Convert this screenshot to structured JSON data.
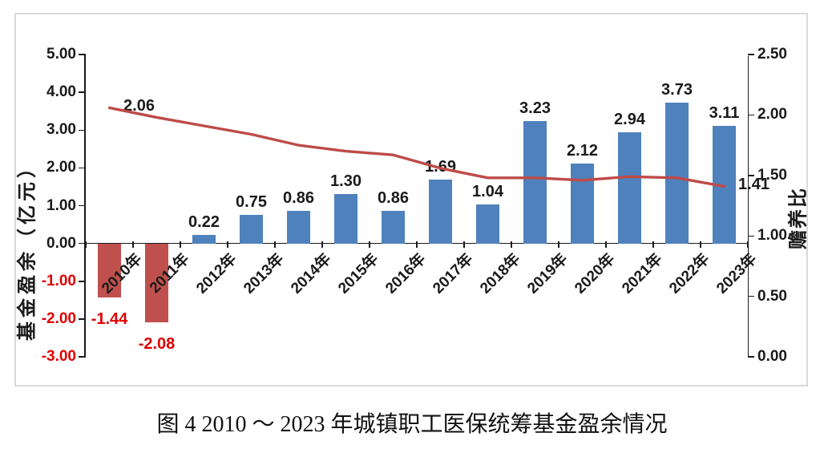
{
  "figure": {
    "caption": "图 4 2010 ～ 2023 年城镇职工医保统筹基金盈余情况"
  },
  "colors": {
    "bar_positive": "#4F81BD",
    "bar_negative": "#C0504D",
    "line": "#BE4B48",
    "negative_label": "#e00000",
    "axis": "#1a1a1a",
    "frame": "#d9d9d9"
  },
  "chart_data": {
    "type": "bar",
    "subtype": "combo-bar-line-dual-axis",
    "categories": [
      "2010年",
      "2011年",
      "2012年",
      "2013年",
      "2014年",
      "2015年",
      "2016年",
      "2017年",
      "2018年",
      "2019年",
      "2020年",
      "2021年",
      "2022年",
      "2023年"
    ],
    "series": [
      {
        "name": "基金盈余",
        "type": "bar",
        "axis": "left",
        "values": [
          -1.44,
          -2.08,
          0.22,
          0.75,
          0.86,
          1.3,
          0.86,
          1.69,
          1.04,
          3.23,
          2.12,
          2.94,
          3.73,
          3.11
        ],
        "labels": [
          "-1.44",
          "-2.08",
          "0.22",
          "0.75",
          "0.86",
          "1.30",
          "0.86",
          "1.69",
          "1.04",
          "3.23",
          "2.12",
          "2.94",
          "3.73",
          "3.11"
        ]
      },
      {
        "name": "赡养比",
        "type": "line",
        "axis": "right",
        "values": [
          2.06,
          1.98,
          1.91,
          1.84,
          1.75,
          1.7,
          1.67,
          1.56,
          1.48,
          1.48,
          1.46,
          1.49,
          1.48,
          1.41
        ],
        "labeled_points": [
          {
            "index": 0,
            "label": "2.06"
          },
          {
            "index": 13,
            "label": "1.41"
          }
        ]
      }
    ],
    "left_axis": {
      "title": "基金盈余（亿元）",
      "min": -3,
      "max": 5,
      "ticks": [
        "5.00",
        "4.00",
        "3.00",
        "2.00",
        "1.00",
        "0.00",
        "-1.00",
        "-2.00",
        "-3.00"
      ]
    },
    "right_axis": {
      "title": "赡养比",
      "min": 0,
      "max": 2.5,
      "ticks": [
        "2.50",
        "2.00",
        "1.50",
        "1.00",
        "0.50",
        "0.00"
      ]
    },
    "grid": false,
    "legend": false
  }
}
